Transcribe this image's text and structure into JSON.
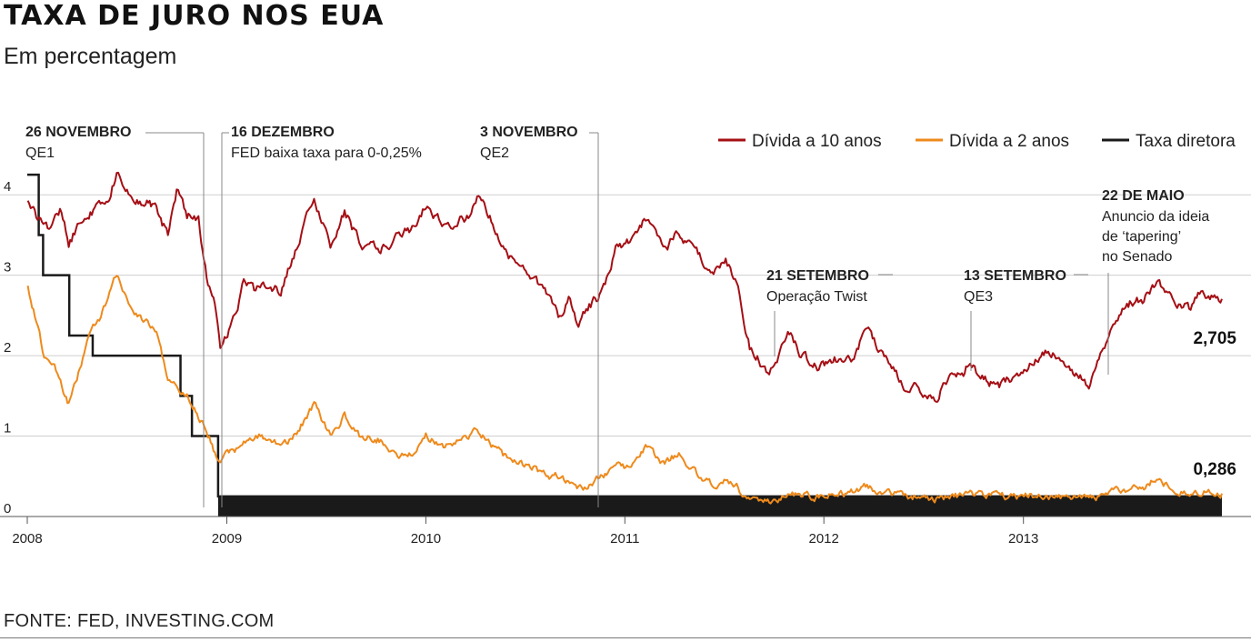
{
  "header": {
    "title": "TAXA DE JURO NOS EUA",
    "subtitle": "Em percentagem"
  },
  "footer": {
    "source": "FONTE: FED, INVESTING.COM"
  },
  "colors": {
    "series_10y": "#a50f15",
    "series_2y": "#ee8a1c",
    "policy_rate": "#1a1a1a",
    "grid": "#cfcfcf"
  },
  "chart_data": {
    "type": "line",
    "title": "TAXA DE JURO NOS EUA",
    "subtitle": "Em percentagem",
    "x_axis": {
      "range": [
        "2008-01-01",
        "2013-12-31"
      ],
      "ticks": [
        {
          "date": "2008-01-01",
          "label": "2008"
        },
        {
          "date": "2009-01-01",
          "label": "2009"
        },
        {
          "date": "2010-01-01",
          "label": "2010"
        },
        {
          "date": "2011-01-01",
          "label": "2011"
        },
        {
          "date": "2012-01-01",
          "label": "2012"
        },
        {
          "date": "2013-01-01",
          "label": "2013"
        }
      ]
    },
    "y_axis": {
      "range": [
        0,
        4.5
      ],
      "ticks": [
        {
          "value": 0,
          "label": "0"
        },
        {
          "value": 1,
          "label": "1"
        },
        {
          "value": 2,
          "label": "2"
        },
        {
          "value": 3,
          "label": "3"
        },
        {
          "value": 4,
          "label": "4"
        }
      ]
    },
    "grid": true,
    "legend": {
      "placement": "top-right",
      "entries": [
        {
          "series": "ten_year",
          "label": "Dívida a 10 anos"
        },
        {
          "series": "two_year",
          "label": "Dívida a 2 anos"
        },
        {
          "series": "policy",
          "label": "Taxa diretora"
        }
      ]
    },
    "series": {
      "ten_year": {
        "name": "Dívida a 10 anos",
        "end_label": "2,705",
        "points": [
          [
            "2008-01-02",
            3.9
          ],
          [
            "2008-01-20",
            3.7
          ],
          [
            "2008-02-10",
            3.6
          ],
          [
            "2008-03-01",
            3.8
          ],
          [
            "2008-03-17",
            3.4
          ],
          [
            "2008-04-10",
            3.7
          ],
          [
            "2008-05-01",
            3.8
          ],
          [
            "2008-05-25",
            3.9
          ],
          [
            "2008-06-13",
            4.25
          ],
          [
            "2008-07-10",
            4.0
          ],
          [
            "2008-08-10",
            3.9
          ],
          [
            "2008-08-25",
            3.8
          ],
          [
            "2008-09-15",
            3.5
          ],
          [
            "2008-10-01",
            4.05
          ],
          [
            "2008-10-20",
            3.75
          ],
          [
            "2008-11-10",
            3.7
          ],
          [
            "2008-11-25",
            3.0
          ],
          [
            "2008-12-10",
            2.6
          ],
          [
            "2008-12-20",
            2.1
          ],
          [
            "2009-01-10",
            2.4
          ],
          [
            "2009-02-01",
            2.9
          ],
          [
            "2009-02-20",
            2.8
          ],
          [
            "2009-03-17",
            2.9
          ],
          [
            "2009-04-10",
            2.8
          ],
          [
            "2009-05-01",
            3.2
          ],
          [
            "2009-06-10",
            3.95
          ],
          [
            "2009-07-10",
            3.4
          ],
          [
            "2009-08-05",
            3.8
          ],
          [
            "2009-09-01",
            3.4
          ],
          [
            "2009-10-10",
            3.3
          ],
          [
            "2009-11-10",
            3.5
          ],
          [
            "2009-12-15",
            3.6
          ],
          [
            "2010-01-01",
            3.85
          ],
          [
            "2010-02-05",
            3.6
          ],
          [
            "2010-02-25",
            3.65
          ],
          [
            "2010-03-20",
            3.75
          ],
          [
            "2010-04-05",
            3.95
          ],
          [
            "2010-05-01",
            3.7
          ],
          [
            "2010-05-25",
            3.3
          ],
          [
            "2010-06-25",
            3.1
          ],
          [
            "2010-07-20",
            2.95
          ],
          [
            "2010-08-10",
            2.8
          ],
          [
            "2010-09-01",
            2.5
          ],
          [
            "2010-09-20",
            2.7
          ],
          [
            "2010-10-08",
            2.4
          ],
          [
            "2010-10-25",
            2.6
          ],
          [
            "2010-11-10",
            2.7
          ],
          [
            "2010-12-01",
            3.0
          ],
          [
            "2010-12-15",
            3.35
          ],
          [
            "2011-01-10",
            3.4
          ],
          [
            "2011-02-08",
            3.7
          ],
          [
            "2011-03-15",
            3.3
          ],
          [
            "2011-04-10",
            3.55
          ],
          [
            "2011-05-10",
            3.3
          ],
          [
            "2011-06-10",
            3.0
          ],
          [
            "2011-07-05",
            3.15
          ],
          [
            "2011-07-25",
            2.95
          ],
          [
            "2011-08-05",
            2.5
          ],
          [
            "2011-08-18",
            2.1
          ],
          [
            "2011-09-01",
            2.0
          ],
          [
            "2011-09-20",
            1.75
          ],
          [
            "2011-10-10",
            2.0
          ],
          [
            "2011-10-27",
            2.35
          ],
          [
            "2011-11-20",
            2.0
          ],
          [
            "2011-12-20",
            1.85
          ],
          [
            "2012-01-15",
            1.95
          ],
          [
            "2012-02-20",
            1.95
          ],
          [
            "2012-03-20",
            2.35
          ],
          [
            "2012-04-15",
            2.0
          ],
          [
            "2012-05-10",
            1.8
          ],
          [
            "2012-06-01",
            1.5
          ],
          [
            "2012-06-20",
            1.6
          ],
          [
            "2012-07-25",
            1.45
          ],
          [
            "2012-08-20",
            1.8
          ],
          [
            "2012-09-13",
            1.7
          ],
          [
            "2012-09-20",
            1.85
          ],
          [
            "2012-10-20",
            1.75
          ],
          [
            "2012-11-15",
            1.6
          ],
          [
            "2012-12-15",
            1.75
          ],
          [
            "2013-01-10",
            1.9
          ],
          [
            "2013-02-10",
            2.05
          ],
          [
            "2013-03-10",
            2.0
          ],
          [
            "2013-04-10",
            1.75
          ],
          [
            "2013-05-01",
            1.65
          ],
          [
            "2013-05-22",
            2.0
          ],
          [
            "2013-06-20",
            2.5
          ],
          [
            "2013-07-10",
            2.65
          ],
          [
            "2013-08-10",
            2.7
          ],
          [
            "2013-09-05",
            2.95
          ],
          [
            "2013-09-20",
            2.75
          ],
          [
            "2013-10-10",
            2.65
          ],
          [
            "2013-11-01",
            2.6
          ],
          [
            "2013-11-20",
            2.75
          ],
          [
            "2013-12-31",
            2.705
          ]
        ]
      },
      "two_year": {
        "name": "Dívida a 2 anos",
        "end_label": "0,286",
        "points": [
          [
            "2008-01-02",
            2.85
          ],
          [
            "2008-01-15",
            2.5
          ],
          [
            "2008-02-01",
            2.0
          ],
          [
            "2008-02-20",
            1.9
          ],
          [
            "2008-03-10",
            1.5
          ],
          [
            "2008-03-17",
            1.4
          ],
          [
            "2008-04-01",
            1.7
          ],
          [
            "2008-04-25",
            2.3
          ],
          [
            "2008-05-15",
            2.5
          ],
          [
            "2008-06-13",
            3.0
          ],
          [
            "2008-07-10",
            2.6
          ],
          [
            "2008-08-01",
            2.45
          ],
          [
            "2008-08-25",
            2.3
          ],
          [
            "2008-09-15",
            1.7
          ],
          [
            "2008-10-01",
            1.6
          ],
          [
            "2008-10-20",
            1.5
          ],
          [
            "2008-11-10",
            1.25
          ],
          [
            "2008-11-25",
            1.1
          ],
          [
            "2008-12-10",
            0.8
          ],
          [
            "2008-12-20",
            0.7
          ],
          [
            "2009-01-10",
            0.8
          ],
          [
            "2009-02-01",
            0.9
          ],
          [
            "2009-03-01",
            1.0
          ],
          [
            "2009-04-01",
            0.9
          ],
          [
            "2009-05-01",
            0.95
          ],
          [
            "2009-06-10",
            1.4
          ],
          [
            "2009-07-10",
            1.0
          ],
          [
            "2009-08-05",
            1.25
          ],
          [
            "2009-09-01",
            1.0
          ],
          [
            "2009-10-10",
            0.95
          ],
          [
            "2009-11-10",
            0.75
          ],
          [
            "2009-12-15",
            0.8
          ],
          [
            "2010-01-01",
            1.0
          ],
          [
            "2010-02-05",
            0.85
          ],
          [
            "2010-03-20",
            1.0
          ],
          [
            "2010-04-05",
            1.1
          ],
          [
            "2010-05-01",
            0.9
          ],
          [
            "2010-05-25",
            0.75
          ],
          [
            "2010-06-25",
            0.65
          ],
          [
            "2010-07-20",
            0.6
          ],
          [
            "2010-08-10",
            0.5
          ],
          [
            "2010-09-01",
            0.5
          ],
          [
            "2010-10-08",
            0.38
          ],
          [
            "2010-10-25",
            0.35
          ],
          [
            "2010-11-10",
            0.45
          ],
          [
            "2010-12-01",
            0.55
          ],
          [
            "2010-12-15",
            0.65
          ],
          [
            "2011-01-10",
            0.6
          ],
          [
            "2011-02-08",
            0.85
          ],
          [
            "2011-03-15",
            0.65
          ],
          [
            "2011-04-10",
            0.8
          ],
          [
            "2011-05-10",
            0.55
          ],
          [
            "2011-06-10",
            0.4
          ],
          [
            "2011-07-05",
            0.45
          ],
          [
            "2011-07-25",
            0.38
          ],
          [
            "2011-08-05",
            0.28
          ],
          [
            "2011-08-18",
            0.2
          ],
          [
            "2011-09-20",
            0.17
          ],
          [
            "2011-10-27",
            0.28
          ],
          [
            "2011-12-20",
            0.24
          ],
          [
            "2012-02-20",
            0.3
          ],
          [
            "2012-03-20",
            0.37
          ],
          [
            "2012-05-10",
            0.27
          ],
          [
            "2012-07-25",
            0.22
          ],
          [
            "2012-09-20",
            0.27
          ],
          [
            "2012-11-15",
            0.25
          ],
          [
            "2013-01-10",
            0.26
          ],
          [
            "2013-03-10",
            0.25
          ],
          [
            "2013-05-01",
            0.22
          ],
          [
            "2013-05-22",
            0.25
          ],
          [
            "2013-06-20",
            0.36
          ],
          [
            "2013-07-10",
            0.32
          ],
          [
            "2013-08-10",
            0.35
          ],
          [
            "2013-09-05",
            0.5
          ],
          [
            "2013-09-20",
            0.38
          ],
          [
            "2013-10-20",
            0.32
          ],
          [
            "2013-11-20",
            0.3
          ],
          [
            "2013-12-31",
            0.286
          ]
        ]
      },
      "policy": {
        "name": "Taxa diretora",
        "steps": [
          [
            "2008-01-01",
            4.25
          ],
          [
            "2008-01-22",
            3.5
          ],
          [
            "2008-01-30",
            3.0
          ],
          [
            "2008-03-18",
            2.25
          ],
          [
            "2008-04-30",
            2.0
          ],
          [
            "2008-10-08",
            1.5
          ],
          [
            "2008-10-29",
            1.0
          ],
          [
            "2008-12-16",
            0.25
          ],
          [
            "2013-12-31",
            0.25
          ]
        ],
        "band_from": "2008-12-16",
        "band_to": "2013-12-31",
        "band_low": 0,
        "band_high": 0.25
      }
    },
    "annotations": [
      {
        "date": "2008-11-25",
        "title": "26 NOVEMBRO",
        "text": [
          "QE1"
        ]
      },
      {
        "date": "2008-12-16",
        "title": "16 DEZEMBRO",
        "text": [
          "FED baixa taxa para 0-0,25%"
        ]
      },
      {
        "date": "2010-11-03",
        "title": "3 NOVEMBRO",
        "text": [
          "QE2"
        ]
      },
      {
        "date": "2011-09-21",
        "title": "21 SETEMBRO",
        "text": [
          "Operação Twist"
        ]
      },
      {
        "date": "2012-09-13",
        "title": "13 SETEMBRO",
        "text": [
          "QE3"
        ]
      },
      {
        "date": "2013-05-22",
        "title": "22 DE MAIO",
        "text": [
          "Anuncio da ideia",
          "de ‘tapering’",
          "no Senado"
        ]
      }
    ]
  }
}
